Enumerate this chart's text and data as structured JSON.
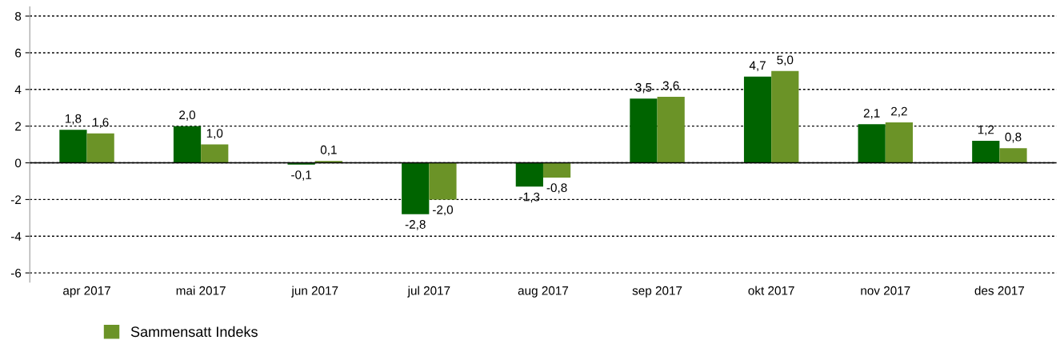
{
  "chart_data": {
    "type": "bar",
    "categories": [
      "apr 2017",
      "mai 2017",
      "jun 2017",
      "jul 2017",
      "aug 2017",
      "sep 2017",
      "okt 2017",
      "nov 2017",
      "des 2017"
    ],
    "series": [
      {
        "color": "#006400",
        "values": [
          1.8,
          2.0,
          -0.1,
          -2.8,
          -1.3,
          3.5,
          4.7,
          2.1,
          1.2
        ],
        "value_labels": [
          "1,8",
          "2,0",
          "-0,1",
          "-2,8",
          "-1,3",
          "3,5",
          "4,7",
          "2,1",
          "1,2"
        ]
      },
      {
        "name": "Sammensatt Indeks",
        "color": "#6b9327",
        "values": [
          1.6,
          1.0,
          0.1,
          -2.0,
          -0.8,
          3.6,
          5.0,
          2.2,
          0.8
        ],
        "value_labels": [
          "1,6",
          "1,0",
          "0,1",
          "-2,0",
          "-0,8",
          "3,6",
          "5,0",
          "2,2",
          "0,8"
        ]
      }
    ],
    "ylim": [
      -6.5,
      8.5
    ],
    "yticks": [
      {
        "value": -6,
        "label": "-6"
      },
      {
        "value": -4,
        "label": "-4"
      },
      {
        "value": -2,
        "label": "-2"
      },
      0,
      2,
      4,
      6,
      8
    ],
    "grid": "y",
    "legend": "bottom"
  }
}
